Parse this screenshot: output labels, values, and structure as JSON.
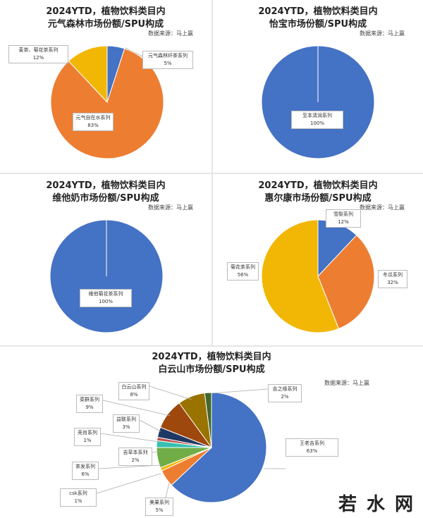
{
  "source_note": "数据来源：马上赢",
  "watermark": "若水网",
  "chart_data": [
    {
      "type": "pie",
      "title": [
        "2024YTD，植物饮料类目内",
        "元气森林市场份额/SPU构成"
      ],
      "slices": [
        {
          "label": "元气森林纤茶系列",
          "value": 5,
          "pct": "5%",
          "color": "#4472C4"
        },
        {
          "label": "元气自在水系列",
          "value": 83,
          "pct": "83%",
          "color": "#ED7D31"
        },
        {
          "label": "麦茶、菊花茶系列",
          "value": 12,
          "pct": "12%",
          "color": "#F2B705"
        }
      ]
    },
    {
      "type": "pie",
      "title": [
        "2024YTD，植物饮料类目内",
        "怡宝市场份额/SPU构成"
      ],
      "slices": [
        {
          "label": "至本清润系列",
          "value": 100,
          "pct": "100%",
          "color": "#4472C4"
        }
      ]
    },
    {
      "type": "pie",
      "title": [
        "2024YTD，植物饮料类目内",
        "维他奶市场份额/SPU构成"
      ],
      "slices": [
        {
          "label": "维他菊花茶系列",
          "value": 100,
          "pct": "100%",
          "color": "#4472C4"
        }
      ]
    },
    {
      "type": "pie",
      "title": [
        "2024YTD，植物饮料类目内",
        "惠尔康市场份额/SPU构成"
      ],
      "slices": [
        {
          "label": "雪梨系列",
          "value": 12,
          "pct": "12%",
          "color": "#4472C4"
        },
        {
          "label": "冬瓜系列",
          "value": 32,
          "pct": "32%",
          "color": "#ED7D31"
        },
        {
          "label": "菊花茶系列",
          "value": 56,
          "pct": "56%",
          "color": "#F2B705"
        }
      ]
    },
    {
      "type": "pie",
      "title": [
        "2024YTD，植物饮料类目内",
        "白云山市场份额/SPU构成"
      ],
      "slices": [
        {
          "label": "王老吉系列",
          "value": 63,
          "pct": "63%",
          "color": "#4472C4"
        },
        {
          "label": "美果系列",
          "value": 5,
          "pct": "5%",
          "color": "#ED7D31"
        },
        {
          "label": "csk系列",
          "value": 1,
          "pct": "1%",
          "color": "#F2B705"
        },
        {
          "label": "茶发系列",
          "value": 6,
          "pct": "6%",
          "color": "#70AD47"
        },
        {
          "label": "吉草本系列",
          "value": 2,
          "pct": "2%",
          "color": "#35C0B0"
        },
        {
          "label": "壳肖系列",
          "value": 1,
          "pct": "1%",
          "color": "#C0504D"
        },
        {
          "label": "益联系列",
          "value": 3,
          "pct": "3%",
          "color": "#203864"
        },
        {
          "label": "菜群系列",
          "value": 9,
          "pct": "9%",
          "color": "#9E480E"
        },
        {
          "label": "白云山系列",
          "value": 8,
          "pct": "8%",
          "color": "#997300"
        },
        {
          "label": "吉之缘系列",
          "value": 2,
          "pct": "2%",
          "color": "#43682B"
        }
      ]
    }
  ]
}
